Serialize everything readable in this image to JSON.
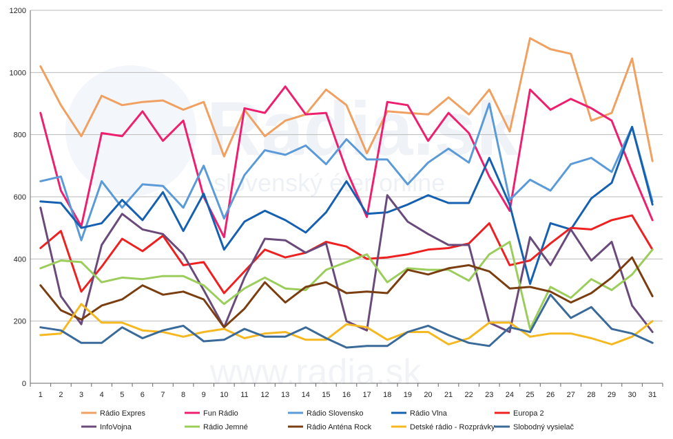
{
  "watermark": {
    "brand": "Radia.sk",
    "tagline": "slovenský éter online",
    "footer": "www.radia.sk"
  },
  "chart_data": {
    "type": "line",
    "x": [
      1,
      2,
      3,
      4,
      5,
      6,
      7,
      8,
      9,
      10,
      11,
      12,
      13,
      14,
      15,
      16,
      17,
      18,
      19,
      20,
      21,
      22,
      23,
      24,
      25,
      26,
      27,
      28,
      29,
      30,
      31
    ],
    "ylim": [
      0,
      1200
    ],
    "yticks": [
      0,
      200,
      400,
      600,
      800,
      1000,
      1200
    ],
    "grid": true,
    "legend_position": "bottom",
    "series": [
      {
        "name": "Rádio Expres",
        "color": "#f0a060",
        "values": [
          1020,
          895,
          795,
          925,
          895,
          905,
          910,
          880,
          905,
          730,
          880,
          795,
          845,
          865,
          945,
          895,
          740,
          875,
          870,
          865,
          920,
          865,
          945,
          810,
          1110,
          1075,
          1060,
          845,
          870,
          1045,
          715
        ]
      },
      {
        "name": "Fun Rádio",
        "color": "#ee1f6e",
        "values": [
          870,
          620,
          505,
          805,
          795,
          875,
          780,
          845,
          600,
          470,
          885,
          870,
          955,
          865,
          870,
          685,
          535,
          905,
          895,
          780,
          870,
          805,
          665,
          555,
          945,
          880,
          915,
          885,
          845,
          680,
          525
        ]
      },
      {
        "name": "Rádio Slovensko",
        "color": "#5a9ad8",
        "values": [
          650,
          665,
          460,
          650,
          565,
          640,
          635,
          565,
          700,
          530,
          670,
          750,
          735,
          765,
          705,
          785,
          720,
          720,
          640,
          710,
          755,
          710,
          900,
          590,
          655,
          620,
          705,
          725,
          680,
          825,
          585
        ]
      },
      {
        "name": "Rádio Vlna",
        "color": "#1560b0",
        "values": [
          585,
          580,
          500,
          515,
          590,
          525,
          615,
          490,
          610,
          430,
          520,
          555,
          525,
          485,
          550,
          650,
          545,
          550,
          575,
          605,
          580,
          580,
          725,
          575,
          320,
          515,
          495,
          595,
          645,
          825,
          575
        ]
      },
      {
        "name": "Europa 2",
        "color": "#ee2020",
        "values": [
          435,
          490,
          295,
          375,
          465,
          425,
          475,
          380,
          390,
          290,
          360,
          430,
          405,
          420,
          455,
          440,
          400,
          405,
          415,
          430,
          435,
          450,
          515,
          380,
          395,
          450,
          500,
          495,
          525,
          540,
          430
        ]
      },
      {
        "name": "InfoVojna",
        "color": "#6a4a7a",
        "values": [
          565,
          280,
          190,
          445,
          545,
          495,
          480,
          415,
          300,
          180,
          340,
          465,
          460,
          420,
          450,
          200,
          170,
          605,
          520,
          480,
          445,
          445,
          195,
          165,
          470,
          380,
          495,
          395,
          455,
          250,
          165
        ]
      },
      {
        "name": "Rádio Jemné",
        "color": "#9acd5a",
        "values": [
          370,
          395,
          390,
          325,
          340,
          335,
          345,
          345,
          315,
          255,
          305,
          340,
          305,
          300,
          365,
          390,
          415,
          325,
          370,
          365,
          365,
          330,
          415,
          455,
          175,
          310,
          275,
          335,
          300,
          350,
          430
        ]
      },
      {
        "name": "Rádio Anténa Rock",
        "color": "#7a3e10",
        "values": [
          315,
          235,
          205,
          250,
          270,
          315,
          285,
          295,
          270,
          180,
          240,
          325,
          260,
          310,
          325,
          290,
          295,
          290,
          365,
          350,
          370,
          380,
          360,
          305,
          310,
          295,
          260,
          290,
          340,
          405,
          280
        ]
      },
      {
        "name": "Detské rádio - Rozprávky",
        "color": "#f5b820",
        "values": [
          155,
          160,
          255,
          195,
          195,
          170,
          165,
          150,
          165,
          175,
          145,
          160,
          165,
          140,
          140,
          190,
          180,
          140,
          165,
          165,
          125,
          145,
          195,
          195,
          150,
          160,
          160,
          145,
          125,
          150,
          200
        ]
      },
      {
        "name": "Slobodný vysielač",
        "color": "#3a6a9a",
        "values": [
          180,
          170,
          130,
          130,
          180,
          145,
          170,
          185,
          135,
          140,
          175,
          150,
          150,
          180,
          145,
          115,
          120,
          120,
          165,
          185,
          155,
          130,
          120,
          180,
          165,
          285,
          210,
          245,
          175,
          160,
          130
        ]
      }
    ]
  }
}
